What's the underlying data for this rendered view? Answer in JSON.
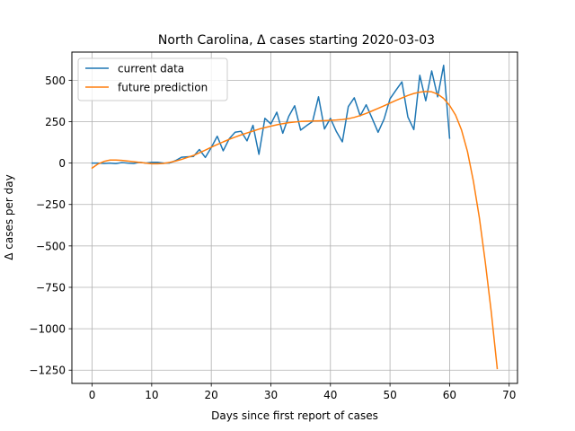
{
  "chart_data": {
    "type": "line",
    "title": "North Carolina, Δ cases starting 2020-03-03",
    "xlabel": "Days since first report of cases",
    "ylabel": "Δ cases per day",
    "xlim": [
      -3.4,
      71.4
    ],
    "ylim": [
      -1330,
      670
    ],
    "xticks": [
      0,
      10,
      20,
      30,
      40,
      50,
      60,
      70
    ],
    "yticks": [
      -1250,
      -1000,
      -750,
      -500,
      -250,
      0,
      250,
      500
    ],
    "grid": true,
    "legend_position": "top-left",
    "colors": {
      "current": "#1f77b4",
      "future": "#ff7f0e",
      "grid": "#b0b0b0"
    },
    "series": [
      {
        "name": "current data",
        "x": [
          0,
          1,
          2,
          3,
          4,
          5,
          6,
          7,
          8,
          9,
          10,
          11,
          12,
          13,
          14,
          15,
          16,
          17,
          18,
          19,
          20,
          21,
          22,
          23,
          24,
          25,
          26,
          27,
          28,
          29,
          30,
          31,
          32,
          33,
          34,
          35,
          36,
          37,
          38,
          39,
          40,
          41,
          42,
          43,
          44,
          45,
          46,
          47,
          48,
          49,
          50,
          51,
          52,
          53,
          54,
          55,
          56,
          57,
          58,
          59,
          60
        ],
        "y": [
          0,
          0,
          -2,
          0,
          -3,
          3,
          0,
          -2,
          5,
          0,
          5,
          5,
          0,
          0,
          15,
          35,
          38,
          40,
          82,
          34,
          94,
          162,
          74,
          146,
          186,
          192,
          134,
          228,
          53,
          270,
          236,
          307,
          180,
          282,
          346,
          199,
          226,
          251,
          400,
          206,
          270,
          190,
          128,
          341,
          394,
          285,
          352,
          270,
          186,
          265,
          388,
          440,
          490,
          278,
          202,
          530,
          376,
          556,
          400,
          590,
          151
        ]
      },
      {
        "name": "future prediction",
        "x": [
          0,
          1,
          2,
          3,
          4,
          5,
          6,
          7,
          8,
          9,
          10,
          11,
          12,
          13,
          14,
          15,
          16,
          17,
          18,
          19,
          20,
          21,
          22,
          23,
          24,
          25,
          26,
          27,
          28,
          29,
          30,
          31,
          32,
          33,
          34,
          35,
          36,
          37,
          38,
          39,
          40,
          41,
          42,
          43,
          44,
          45,
          46,
          47,
          48,
          49,
          50,
          51,
          52,
          53,
          54,
          55,
          56,
          57,
          58,
          59,
          60,
          61,
          62,
          63,
          64,
          65,
          66,
          67,
          68
        ],
        "y": [
          -30,
          -5,
          10,
          18,
          18,
          16,
          12,
          8,
          4,
          0,
          -4,
          -4,
          -2,
          4,
          12,
          22,
          34,
          46,
          62,
          78,
          96,
          112,
          128,
          143,
          157,
          170,
          182,
          193,
          205,
          214,
          223,
          231,
          238,
          244,
          248,
          251,
          253,
          254,
          255,
          256,
          258,
          260,
          263,
          268,
          276,
          287,
          300,
          315,
          330,
          346,
          362,
          378,
          393,
          408,
          420,
          428,
          432,
          430,
          416,
          390,
          348,
          290,
          200,
          70,
          -110,
          -330,
          -600,
          -900,
          -1240
        ]
      }
    ]
  }
}
